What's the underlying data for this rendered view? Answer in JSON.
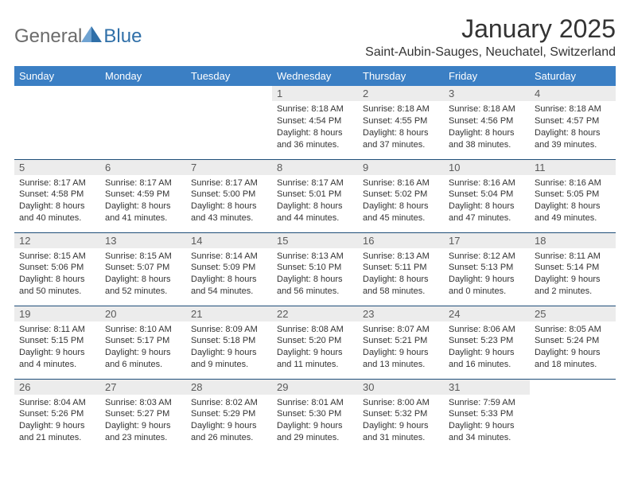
{
  "logo": {
    "word1": "General",
    "word2": "Blue"
  },
  "title": "January 2025",
  "location": "Saint-Aubin-Sauges, Neuchatel, Switzerland",
  "colors": {
    "header_bg": "#3b7fc4",
    "header_text": "#ffffff",
    "border": "#1f4e79",
    "daynum_bg": "#ececec",
    "daynum_text": "#5a5a5a",
    "body_text": "#333333",
    "logo_gray": "#6b6b6b",
    "logo_blue": "#2f6fa8",
    "logo_icon": "#2f6fa8"
  },
  "weekdays": [
    "Sunday",
    "Monday",
    "Tuesday",
    "Wednesday",
    "Thursday",
    "Friday",
    "Saturday"
  ],
  "weeks": [
    [
      {
        "n": "",
        "sr": "",
        "ss": "",
        "dl": "",
        "empty": true
      },
      {
        "n": "",
        "sr": "",
        "ss": "",
        "dl": "",
        "empty": true
      },
      {
        "n": "",
        "sr": "",
        "ss": "",
        "dl": "",
        "empty": true
      },
      {
        "n": "1",
        "sr": "Sunrise: 8:18 AM",
        "ss": "Sunset: 4:54 PM",
        "dl": "Daylight: 8 hours and 36 minutes."
      },
      {
        "n": "2",
        "sr": "Sunrise: 8:18 AM",
        "ss": "Sunset: 4:55 PM",
        "dl": "Daylight: 8 hours and 37 minutes."
      },
      {
        "n": "3",
        "sr": "Sunrise: 8:18 AM",
        "ss": "Sunset: 4:56 PM",
        "dl": "Daylight: 8 hours and 38 minutes."
      },
      {
        "n": "4",
        "sr": "Sunrise: 8:18 AM",
        "ss": "Sunset: 4:57 PM",
        "dl": "Daylight: 8 hours and 39 minutes."
      }
    ],
    [
      {
        "n": "5",
        "sr": "Sunrise: 8:17 AM",
        "ss": "Sunset: 4:58 PM",
        "dl": "Daylight: 8 hours and 40 minutes."
      },
      {
        "n": "6",
        "sr": "Sunrise: 8:17 AM",
        "ss": "Sunset: 4:59 PM",
        "dl": "Daylight: 8 hours and 41 minutes."
      },
      {
        "n": "7",
        "sr": "Sunrise: 8:17 AM",
        "ss": "Sunset: 5:00 PM",
        "dl": "Daylight: 8 hours and 43 minutes."
      },
      {
        "n": "8",
        "sr": "Sunrise: 8:17 AM",
        "ss": "Sunset: 5:01 PM",
        "dl": "Daylight: 8 hours and 44 minutes."
      },
      {
        "n": "9",
        "sr": "Sunrise: 8:16 AM",
        "ss": "Sunset: 5:02 PM",
        "dl": "Daylight: 8 hours and 45 minutes."
      },
      {
        "n": "10",
        "sr": "Sunrise: 8:16 AM",
        "ss": "Sunset: 5:04 PM",
        "dl": "Daylight: 8 hours and 47 minutes."
      },
      {
        "n": "11",
        "sr": "Sunrise: 8:16 AM",
        "ss": "Sunset: 5:05 PM",
        "dl": "Daylight: 8 hours and 49 minutes."
      }
    ],
    [
      {
        "n": "12",
        "sr": "Sunrise: 8:15 AM",
        "ss": "Sunset: 5:06 PM",
        "dl": "Daylight: 8 hours and 50 minutes."
      },
      {
        "n": "13",
        "sr": "Sunrise: 8:15 AM",
        "ss": "Sunset: 5:07 PM",
        "dl": "Daylight: 8 hours and 52 minutes."
      },
      {
        "n": "14",
        "sr": "Sunrise: 8:14 AM",
        "ss": "Sunset: 5:09 PM",
        "dl": "Daylight: 8 hours and 54 minutes."
      },
      {
        "n": "15",
        "sr": "Sunrise: 8:13 AM",
        "ss": "Sunset: 5:10 PM",
        "dl": "Daylight: 8 hours and 56 minutes."
      },
      {
        "n": "16",
        "sr": "Sunrise: 8:13 AM",
        "ss": "Sunset: 5:11 PM",
        "dl": "Daylight: 8 hours and 58 minutes."
      },
      {
        "n": "17",
        "sr": "Sunrise: 8:12 AM",
        "ss": "Sunset: 5:13 PM",
        "dl": "Daylight: 9 hours and 0 minutes."
      },
      {
        "n": "18",
        "sr": "Sunrise: 8:11 AM",
        "ss": "Sunset: 5:14 PM",
        "dl": "Daylight: 9 hours and 2 minutes."
      }
    ],
    [
      {
        "n": "19",
        "sr": "Sunrise: 8:11 AM",
        "ss": "Sunset: 5:15 PM",
        "dl": "Daylight: 9 hours and 4 minutes."
      },
      {
        "n": "20",
        "sr": "Sunrise: 8:10 AM",
        "ss": "Sunset: 5:17 PM",
        "dl": "Daylight: 9 hours and 6 minutes."
      },
      {
        "n": "21",
        "sr": "Sunrise: 8:09 AM",
        "ss": "Sunset: 5:18 PM",
        "dl": "Daylight: 9 hours and 9 minutes."
      },
      {
        "n": "22",
        "sr": "Sunrise: 8:08 AM",
        "ss": "Sunset: 5:20 PM",
        "dl": "Daylight: 9 hours and 11 minutes."
      },
      {
        "n": "23",
        "sr": "Sunrise: 8:07 AM",
        "ss": "Sunset: 5:21 PM",
        "dl": "Daylight: 9 hours and 13 minutes."
      },
      {
        "n": "24",
        "sr": "Sunrise: 8:06 AM",
        "ss": "Sunset: 5:23 PM",
        "dl": "Daylight: 9 hours and 16 minutes."
      },
      {
        "n": "25",
        "sr": "Sunrise: 8:05 AM",
        "ss": "Sunset: 5:24 PM",
        "dl": "Daylight: 9 hours and 18 minutes."
      }
    ],
    [
      {
        "n": "26",
        "sr": "Sunrise: 8:04 AM",
        "ss": "Sunset: 5:26 PM",
        "dl": "Daylight: 9 hours and 21 minutes."
      },
      {
        "n": "27",
        "sr": "Sunrise: 8:03 AM",
        "ss": "Sunset: 5:27 PM",
        "dl": "Daylight: 9 hours and 23 minutes."
      },
      {
        "n": "28",
        "sr": "Sunrise: 8:02 AM",
        "ss": "Sunset: 5:29 PM",
        "dl": "Daylight: 9 hours and 26 minutes."
      },
      {
        "n": "29",
        "sr": "Sunrise: 8:01 AM",
        "ss": "Sunset: 5:30 PM",
        "dl": "Daylight: 9 hours and 29 minutes."
      },
      {
        "n": "30",
        "sr": "Sunrise: 8:00 AM",
        "ss": "Sunset: 5:32 PM",
        "dl": "Daylight: 9 hours and 31 minutes."
      },
      {
        "n": "31",
        "sr": "Sunrise: 7:59 AM",
        "ss": "Sunset: 5:33 PM",
        "dl": "Daylight: 9 hours and 34 minutes."
      },
      {
        "n": "",
        "sr": "",
        "ss": "",
        "dl": "",
        "empty": true
      }
    ]
  ]
}
